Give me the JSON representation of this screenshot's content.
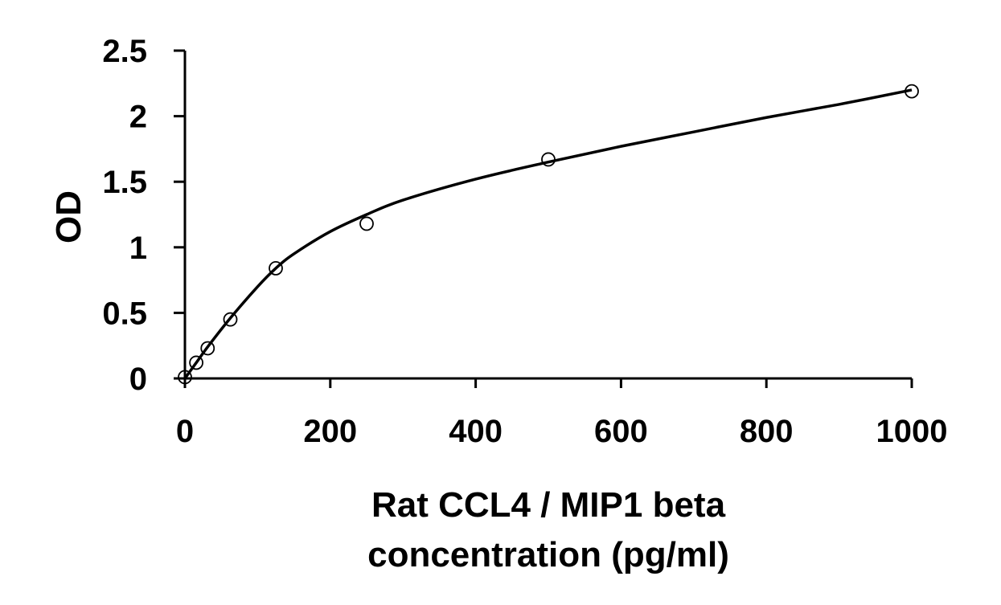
{
  "chart_data": {
    "type": "scatter",
    "title": "",
    "xlabel_lines": [
      "Rat CCL4 / MIP1 beta",
      "concentration (pg/ml)"
    ],
    "ylabel": "OD",
    "xlim": [
      0,
      1000
    ],
    "ylim": [
      0,
      2.5
    ],
    "x_ticks": [
      0,
      200,
      400,
      600,
      800,
      1000
    ],
    "x_tick_labels": [
      "0",
      "200",
      "400",
      "600",
      "800",
      "1000"
    ],
    "y_ticks": [
      0,
      0.5,
      1,
      1.5,
      2,
      2.5
    ],
    "y_tick_labels": [
      "0",
      "0.5",
      "1",
      "1.5",
      "2",
      "2.5"
    ],
    "grid": false,
    "legend": "none",
    "marker": "open-circle",
    "series": [
      {
        "x": [
          0,
          15.6,
          31.25,
          62.5,
          125,
          250,
          500,
          1000
        ],
        "y": [
          0.01,
          0.12,
          0.23,
          0.45,
          0.84,
          1.18,
          1.67,
          2.19
        ]
      }
    ],
    "fit_curve": {
      "x": [
        0,
        15.6,
        31.25,
        62.5,
        100,
        125,
        150,
        200,
        250,
        300,
        400,
        500,
        600,
        700,
        800,
        900,
        1000
      ],
      "y": [
        0.0,
        0.12,
        0.24,
        0.46,
        0.7,
        0.84,
        0.95,
        1.12,
        1.25,
        1.36,
        1.52,
        1.65,
        1.77,
        1.88,
        1.99,
        2.09,
        2.2
      ]
    },
    "colors": {
      "line": "#000000",
      "marker": "#000000",
      "background": "#ffffff"
    }
  }
}
